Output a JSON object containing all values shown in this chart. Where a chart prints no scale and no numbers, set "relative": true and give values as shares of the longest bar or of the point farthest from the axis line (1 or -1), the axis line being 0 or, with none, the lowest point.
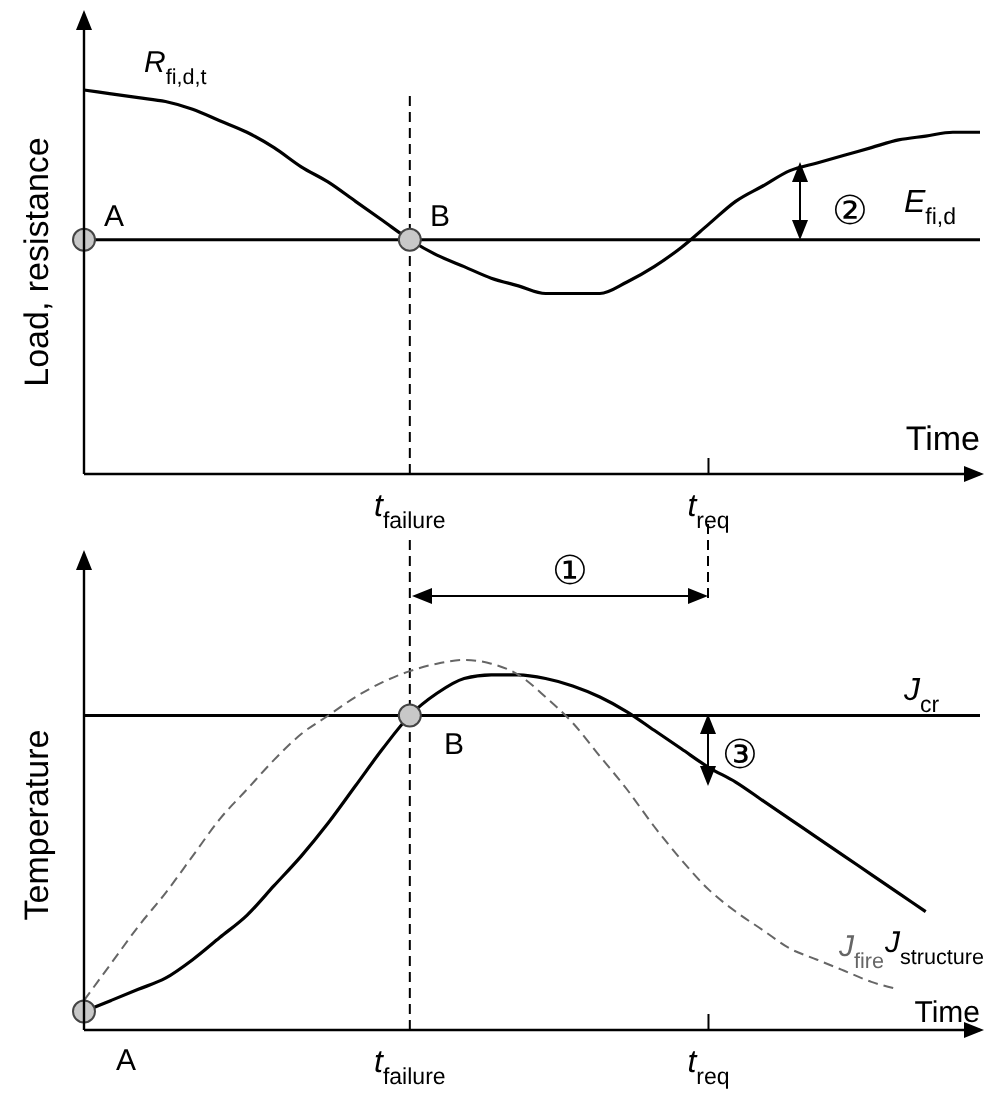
{
  "chart_data": [
    {
      "type": "line",
      "relative": true,
      "xlabel": "Time",
      "ylabel": "Load, resistance",
      "legend": false,
      "categories": [
        null,
        null,
        null,
        null,
        null,
        null,
        null,
        null,
        null,
        null,
        null,
        null,
        "t$_{failure}$",
        null,
        null,
        null,
        null,
        null,
        null,
        null,
        null,
        null,
        null,
        "t$_{req}$",
        null,
        null,
        null,
        null,
        null,
        null,
        null,
        null,
        null,
        null
      ],
      "series": [
        {
          "name": "R$_{fi,d,t}$",
          "color": "#000000",
          "values": [
            1,
            0.99,
            0.98,
            0.97,
            0.95,
            0.92,
            0.89,
            0.85,
            0.8,
            0.76,
            0.71,
            0.66,
            0.61,
            0.57,
            0.54,
            0.51,
            0.49,
            0.47,
            0.47,
            0.47,
            0.5,
            0.54,
            0.59,
            0.65,
            0.71,
            0.75,
            0.79,
            0.81,
            0.83,
            0.85,
            0.87,
            0.88,
            0.89,
            0.89
          ]
        },
        {
          "type": "scatter",
          "color": "#c8c8c8",
          "marker": "circle",
          "values": [
            0.61,
            null,
            null,
            null,
            null,
            null,
            null,
            null,
            null,
            null,
            null,
            null,
            0.61,
            null,
            null,
            null,
            null,
            null,
            null,
            null,
            null,
            null,
            null,
            null,
            null,
            null,
            null,
            null,
            null,
            null,
            null,
            null,
            null,
            null
          ]
        }
      ],
      "ref_lines": [
        {
          "axis": "x",
          "value": "t$_{failure}$",
          "line_style": "dashed"
        },
        {
          "axis": "y",
          "value": 0.61,
          "label": "E$_{fi,d}$"
        }
      ],
      "annotations": [
        "A",
        "B",
        "②"
      ]
    },
    {
      "type": "line",
      "relative": true,
      "xlabel": "Time",
      "ylabel": "Temperature",
      "legend": false,
      "categories": [
        null,
        null,
        null,
        null,
        null,
        null,
        null,
        null,
        null,
        null,
        null,
        null,
        "t$_{failure}$",
        null,
        null,
        null,
        null,
        null,
        null,
        null,
        null,
        null,
        null,
        "t$_{req}$",
        null,
        null,
        null,
        null,
        null,
        null,
        null,
        null,
        null,
        null
      ],
      "series": [
        {
          "name": "J$_{structure}$",
          "color": "#000000",
          "values": [
            0.05,
            0.08,
            0.11,
            0.14,
            0.19,
            0.25,
            0.31,
            0.39,
            0.47,
            0.56,
            0.66,
            0.76,
            0.85,
            0.91,
            0.95,
            0.96,
            0.96,
            0.95,
            0.93,
            0.9,
            0.86,
            0.81,
            0.76,
            0.71,
            0.67,
            0.62,
            0.57,
            0.52,
            0.47,
            0.42,
            0.37,
            0.32,
            null,
            null
          ]
        },
        {
          "name": "J$_{fire}$",
          "color": "#666666",
          "line_style": "dashed",
          "values": [
            0.08,
            0.18,
            0.28,
            0.37,
            0.47,
            0.57,
            0.65,
            0.73,
            0.8,
            0.85,
            0.9,
            0.94,
            0.97,
            0.99,
            1,
            0.99,
            0.96,
            0.9,
            0.83,
            0.74,
            0.65,
            0.55,
            0.46,
            0.38,
            0.32,
            0.27,
            0.22,
            0.19,
            0.16,
            0.13,
            0.11,
            null,
            null,
            null
          ]
        },
        {
          "type": "scatter",
          "color": "#c8c8c8",
          "marker": "circle",
          "values": [
            0.05,
            null,
            null,
            null,
            null,
            null,
            null,
            null,
            null,
            null,
            null,
            null,
            0.85,
            null,
            null,
            null,
            null,
            null,
            null,
            null,
            null,
            null,
            null,
            null,
            null,
            null,
            null,
            null,
            null,
            null,
            null,
            null,
            null,
            null
          ]
        }
      ],
      "ref_lines": [
        {
          "axis": "x",
          "value": "t$_{failure}$",
          "line_style": "dashed"
        },
        {
          "axis": "y",
          "value": 0.85,
          "label": "J$_{cr}$"
        }
      ],
      "annotations": [
        "A",
        "B",
        "①",
        "③"
      ]
    }
  ]
}
